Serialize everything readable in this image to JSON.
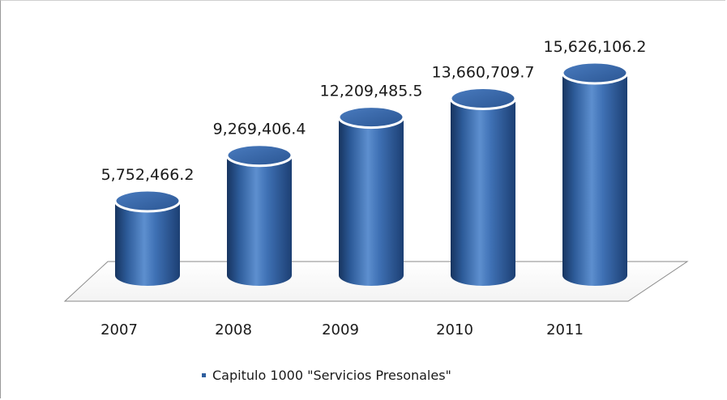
{
  "chart_data": {
    "type": "bar",
    "style": "3d-cylinder",
    "categories": [
      "2007",
      "2008",
      "2009",
      "2010",
      "2011"
    ],
    "series": [
      {
        "name": "Capitulo 1000 \"Servicios Presonales\"",
        "values": [
          5752466.2,
          9269406.4,
          12209485.5,
          13660709.7,
          15626106.2
        ],
        "labels": [
          "5,752,466.2",
          "9,269,406.4",
          "12,209,485.5",
          "13,660,709.7",
          "15,626,106.2"
        ]
      }
    ],
    "title": "",
    "xlabel": "",
    "ylabel": "",
    "ylim": [
      0,
      18000000
    ],
    "grid": false,
    "legend_position": "bottom",
    "colors": {
      "bar": "#2e5e9e",
      "bar_light": "#6f9fd8",
      "bar_dark": "#17345f",
      "cap": "#3f6fb2"
    }
  },
  "legend": {
    "label": "Capitulo 1000 \"Servicios Presonales\""
  }
}
